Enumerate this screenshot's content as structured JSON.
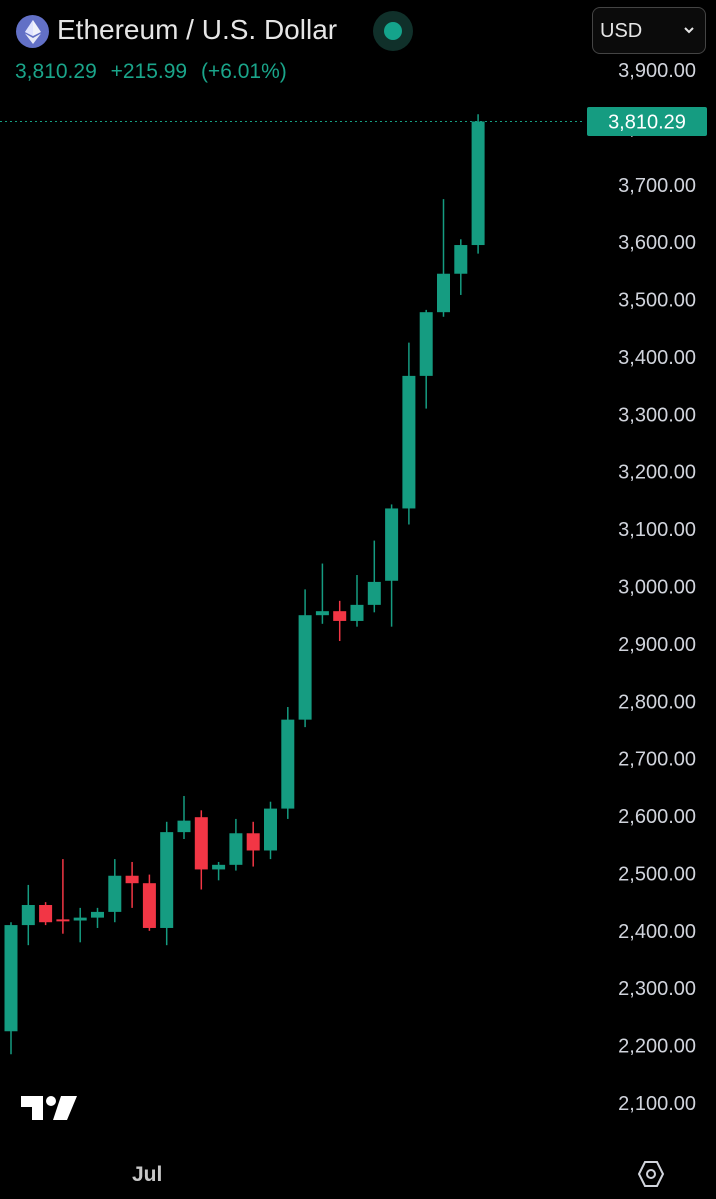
{
  "header": {
    "title": "Ethereum / U.S. Dollar",
    "coin_icon": "ethereum-icon",
    "last_price": "3,810.29",
    "change": "+215.99",
    "change_percent": "(+6.01%)",
    "currency": "USD",
    "status_icon": "market-open-dot-icon"
  },
  "colors": {
    "up": "#159c81",
    "down": "#f23645",
    "price_tag": "#159c81",
    "accent": "#1aa58a"
  },
  "price_tag_label": "3,810.29",
  "x_axis": {
    "month_label": "Jul"
  },
  "footer": {
    "logo_icon": "tradingview-logo-icon",
    "settings_icon": "settings-hexagon-icon"
  },
  "chart_data": {
    "type": "candlestick",
    "title": "Ethereum / U.S. Dollar",
    "y_ticks": [
      3900,
      3800,
      3700,
      3600,
      3500,
      3400,
      3300,
      3200,
      3100,
      3000,
      2900,
      2800,
      2700,
      2600,
      2500,
      2400,
      2300,
      2200,
      2100
    ],
    "y_tick_labels": [
      "3,900.00",
      "3,800.00",
      "3,700.00",
      "3,600.00",
      "3,500.00",
      "3,400.00",
      "3,300.00",
      "3,200.00",
      "3,100.00",
      "3,000.00",
      "2,900.00",
      "2,800.00",
      "2,700.00",
      "2,600.00",
      "2,500.00",
      "2,400.00",
      "2,300.00",
      "2,200.00",
      "2,100.00"
    ],
    "ylim": [
      2080,
      3920
    ],
    "last_value": 3810.29,
    "candles": [
      {
        "o": 2225,
        "h": 2415,
        "l": 2185,
        "c": 2410
      },
      {
        "o": 2410,
        "h": 2480,
        "l": 2375,
        "c": 2445
      },
      {
        "o": 2445,
        "h": 2450,
        "l": 2410,
        "c": 2415
      },
      {
        "o": 2420,
        "h": 2525,
        "l": 2395,
        "c": 2418
      },
      {
        "o": 2418,
        "h": 2440,
        "l": 2380,
        "c": 2423
      },
      {
        "o": 2423,
        "h": 2440,
        "l": 2405,
        "c": 2433
      },
      {
        "o": 2433,
        "h": 2525,
        "l": 2415,
        "c": 2496
      },
      {
        "o": 2496,
        "h": 2520,
        "l": 2440,
        "c": 2483
      },
      {
        "o": 2483,
        "h": 2498,
        "l": 2400,
        "c": 2405
      },
      {
        "o": 2405,
        "h": 2590,
        "l": 2375,
        "c": 2572
      },
      {
        "o": 2572,
        "h": 2635,
        "l": 2560,
        "c": 2592
      },
      {
        "o": 2598,
        "h": 2610,
        "l": 2472,
        "c": 2507
      },
      {
        "o": 2507,
        "h": 2520,
        "l": 2488,
        "c": 2515
      },
      {
        "o": 2515,
        "h": 2595,
        "l": 2505,
        "c": 2570
      },
      {
        "o": 2570,
        "h": 2590,
        "l": 2512,
        "c": 2540
      },
      {
        "o": 2540,
        "h": 2625,
        "l": 2525,
        "c": 2613
      },
      {
        "o": 2613,
        "h": 2790,
        "l": 2595,
        "c": 2768
      },
      {
        "o": 2768,
        "h": 2995,
        "l": 2755,
        "c": 2950
      },
      {
        "o": 2950,
        "h": 3040,
        "l": 2935,
        "c": 2957
      },
      {
        "o": 2957,
        "h": 2975,
        "l": 2905,
        "c": 2940
      },
      {
        "o": 2940,
        "h": 3020,
        "l": 2930,
        "c": 2968
      },
      {
        "o": 2968,
        "h": 3080,
        "l": 2955,
        "c": 3008
      },
      {
        "o": 3010,
        "h": 3143,
        "l": 2930,
        "c": 3136
      },
      {
        "o": 3136,
        "h": 3425,
        "l": 3108,
        "c": 3367
      },
      {
        "o": 3367,
        "h": 3482,
        "l": 3310,
        "c": 3478
      },
      {
        "o": 3478,
        "h": 3675,
        "l": 3470,
        "c": 3545
      },
      {
        "o": 3545,
        "h": 3605,
        "l": 3508,
        "c": 3595
      },
      {
        "o": 3595,
        "h": 3823,
        "l": 3580,
        "c": 3810.29
      }
    ]
  }
}
